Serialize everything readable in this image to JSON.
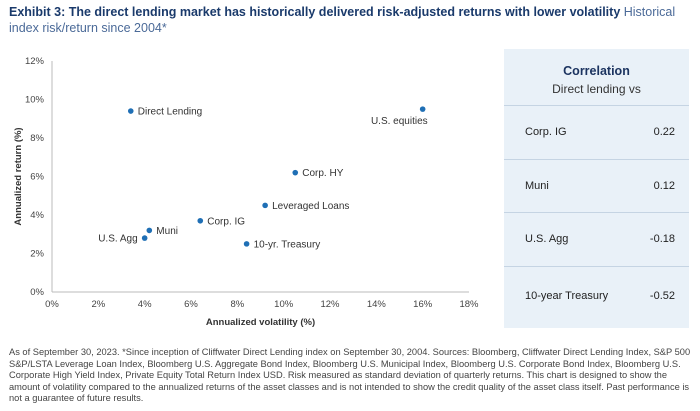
{
  "header": {
    "title_bold": "Exhibit 3: The direct lending market has historically delivered risk-adjusted returns with lower volatility",
    "title_rest": " Historical index risk/return since 2004*"
  },
  "chart_data": {
    "type": "scatter",
    "xlabel": "Annualized volatility (%)",
    "ylabel": "Annualized return (%)",
    "xlim": [
      0,
      18
    ],
    "ylim": [
      0,
      12
    ],
    "x_ticks": [
      "0%",
      "2%",
      "4%",
      "6%",
      "8%",
      "10%",
      "12%",
      "14%",
      "16%",
      "18%"
    ],
    "y_ticks": [
      "0%",
      "2%",
      "4%",
      "6%",
      "8%",
      "10%",
      "12%"
    ],
    "grid": false,
    "point_color": "#1f6fb5",
    "points": [
      {
        "label": "Direct Lending",
        "x": 3.4,
        "y": 9.4,
        "label_pos": "right"
      },
      {
        "label": "U.S. equities",
        "x": 16.0,
        "y": 9.5,
        "label_pos": "below-left"
      },
      {
        "label": "Corp. HY",
        "x": 10.5,
        "y": 6.2,
        "label_pos": "right"
      },
      {
        "label": "Leveraged Loans",
        "x": 9.2,
        "y": 4.5,
        "label_pos": "right"
      },
      {
        "label": "Corp. IG",
        "x": 6.4,
        "y": 3.7,
        "label_pos": "right"
      },
      {
        "label": "Muni",
        "x": 4.2,
        "y": 3.2,
        "label_pos": "right"
      },
      {
        "label": "U.S. Agg",
        "x": 4.0,
        "y": 2.8,
        "label_pos": "left"
      },
      {
        "label": "10-yr. Treasury",
        "x": 8.4,
        "y": 2.5,
        "label_pos": "right"
      }
    ]
  },
  "correlation": {
    "title": "Correlation",
    "subtitle": "Direct lending vs",
    "rows": [
      {
        "name": "Corp. IG",
        "value": "0.22"
      },
      {
        "name": "Muni",
        "value": "0.12"
      },
      {
        "name": "U.S. Agg",
        "value": "-0.18"
      },
      {
        "name": "10-year Treasury",
        "value": "-0.52"
      }
    ]
  },
  "footnote": "As of September 30, 2023. *Since inception of Cliffwater Direct Lending index on September 30, 2004. Sources: Bloomberg, Cliffwater Direct Lending Index, S&P 500 S&P/LSTA Leverage Loan Index, Bloomberg U.S. Aggregate Bond Index, Bloomberg U.S. Municipal Index, Bloomberg U.S. Corporate Bond Index, Bloomberg U.S. Corporate High Yield Index, Private Equity Total Return Index USD. Risk measured as standard deviation of quarterly returns. This chart is designed to show the amount of volatility compared to the annualized returns of the asset classes and is not intended to show the credit quality of the asset class itself. Past performance is not a guarantee of future results."
}
